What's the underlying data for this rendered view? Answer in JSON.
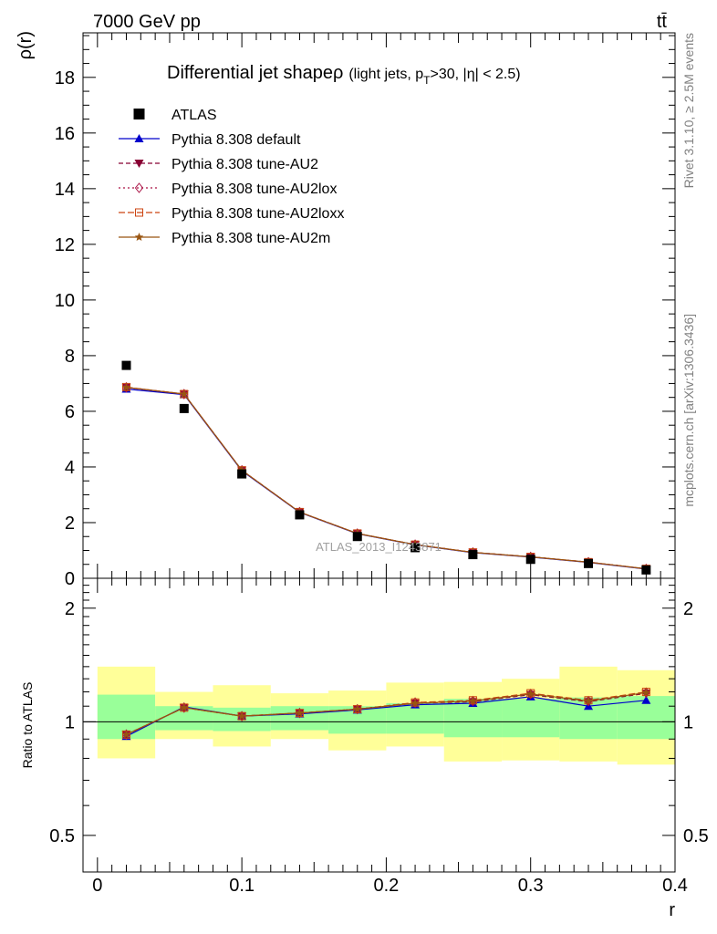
{
  "header": {
    "left": "7000 GeV pp",
    "right": "tt̄"
  },
  "side": {
    "rivet": "Rivet 3.1.10, ≥ 2.5M events",
    "mcplots": "mcplots.cern.ch [arXiv:1306.3436]"
  },
  "main": {
    "title": "Differential jet shapeρ",
    "subtitle": "(light jets, p",
    "subtitle_sub": "T",
    "subtitle_rest": ">30, |η| < 2.5)",
    "ylabel": "ρ(r)",
    "watermark": "ATLAS_2013_I1243871"
  },
  "ratio": {
    "ylabel": "Ratio to ATLAS"
  },
  "xlabel": "r",
  "legend": [
    {
      "label": "ATLAS"
    },
    {
      "label": "Pythia 8.308 default"
    },
    {
      "label": "Pythia 8.308 tune-AU2"
    },
    {
      "label": "Pythia 8.308 tune-AU2lox"
    },
    {
      "label": "Pythia 8.308 tune-AU2loxx"
    },
    {
      "label": "Pythia 8.308 tune-AU2m"
    }
  ],
  "chart_data": {
    "type": "scatter",
    "x": [
      0.02,
      0.06,
      0.1,
      0.14,
      0.18,
      0.22,
      0.26,
      0.3,
      0.34,
      0.38
    ],
    "xlim": [
      -0.01,
      0.4
    ],
    "ylim": [
      0,
      19.6
    ],
    "xticks": [
      "0",
      "0.1",
      "0.2",
      "0.3",
      "0.4"
    ],
    "yticks": [
      "0",
      "2",
      "4",
      "6",
      "8",
      "10",
      "12",
      "14",
      "16",
      "18"
    ],
    "ratio_ylim": [
      0.4,
      2.4
    ],
    "ratio_yticks": [
      "0.5",
      "1",
      "2"
    ],
    "data": {
      "name": "ATLAS",
      "values": [
        7.65,
        6.1,
        3.75,
        2.28,
        1.5,
        1.1,
        0.85,
        0.68,
        0.53,
        0.3
      ],
      "color": "#000000"
    },
    "series": [
      {
        "name": "Pythia 8.308 default",
        "color": "#0000cc",
        "marker": "triangle",
        "dash": "",
        "values": [
          6.8,
          6.6,
          3.86,
          2.37,
          1.6,
          1.2,
          0.92,
          0.76,
          0.57,
          0.33
        ],
        "ratio": [
          0.915,
          1.095,
          1.035,
          1.05,
          1.075,
          1.11,
          1.12,
          1.165,
          1.1,
          1.14
        ]
      },
      {
        "name": "Pythia 8.308 tune-AU2",
        "color": "#880033",
        "marker": "triangle-down",
        "dash": "5,3",
        "values": [
          6.86,
          6.62,
          3.88,
          2.38,
          1.61,
          1.21,
          0.93,
          0.77,
          0.58,
          0.34
        ],
        "ratio": [
          0.925,
          1.09,
          1.035,
          1.055,
          1.08,
          1.12,
          1.13,
          1.18,
          1.13,
          1.19
        ]
      },
      {
        "name": "Pythia 8.308 tune-AU2lox",
        "color": "#aa1144",
        "marker": "diamond",
        "dash": "2,3",
        "values": [
          6.86,
          6.62,
          3.88,
          2.38,
          1.61,
          1.21,
          0.93,
          0.77,
          0.58,
          0.34
        ],
        "ratio": [
          0.925,
          1.09,
          1.035,
          1.055,
          1.08,
          1.125,
          1.135,
          1.185,
          1.135,
          1.195
        ]
      },
      {
        "name": "Pythia 8.308 tune-AU2loxx",
        "color": "#cc4411",
        "marker": "square",
        "dash": "7,3",
        "values": [
          6.87,
          6.62,
          3.88,
          2.38,
          1.61,
          1.21,
          0.93,
          0.77,
          0.58,
          0.34
        ],
        "ratio": [
          0.925,
          1.09,
          1.035,
          1.055,
          1.08,
          1.125,
          1.14,
          1.19,
          1.14,
          1.2
        ]
      },
      {
        "name": "Pythia 8.308 tune-AU2m",
        "color": "#995511",
        "marker": "star",
        "dash": "",
        "values": [
          6.86,
          6.62,
          3.88,
          2.38,
          1.61,
          1.21,
          0.93,
          0.77,
          0.58,
          0.34
        ],
        "ratio": [
          0.925,
          1.09,
          1.035,
          1.055,
          1.08,
          1.12,
          1.135,
          1.185,
          1.135,
          1.195
        ]
      }
    ],
    "bands": {
      "inner": [
        [
          0.9,
          1.18
        ],
        [
          0.95,
          1.1
        ],
        [
          0.945,
          1.09
        ],
        [
          0.95,
          1.1
        ],
        [
          0.93,
          1.1
        ],
        [
          0.93,
          1.12
        ],
        [
          0.91,
          1.15
        ],
        [
          0.91,
          1.15
        ],
        [
          0.9,
          1.16
        ],
        [
          0.9,
          1.17
        ]
      ],
      "outer": [
        [
          0.8,
          1.4
        ],
        [
          0.9,
          1.2
        ],
        [
          0.86,
          1.25
        ],
        [
          0.9,
          1.19
        ],
        [
          0.84,
          1.21
        ],
        [
          0.86,
          1.27
        ],
        [
          0.785,
          1.275
        ],
        [
          0.79,
          1.3
        ],
        [
          0.785,
          1.4
        ],
        [
          0.77,
          1.37
        ]
      ],
      "inner_color": "#99ff99",
      "outer_color": "#ffff99"
    }
  }
}
